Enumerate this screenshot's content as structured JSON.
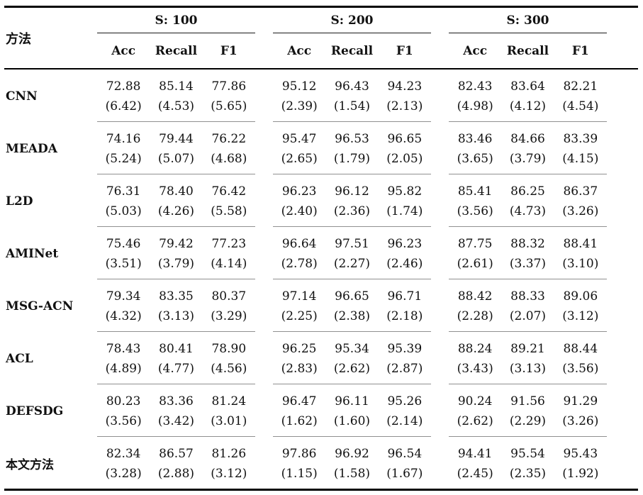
{
  "colors": {
    "text": "#111111",
    "thick_rule": "#000000",
    "row_separator": "#909090"
  },
  "table": {
    "method_header": "方法",
    "groups": [
      {
        "title": "S: 100",
        "columns": [
          "Acc",
          "Recall",
          "F1"
        ]
      },
      {
        "title": "S: 200",
        "columns": [
          "Acc",
          "Recall",
          "F1"
        ]
      },
      {
        "title": "S: 300",
        "columns": [
          "Acc",
          "Recall",
          "F1"
        ]
      }
    ],
    "rows": [
      {
        "method": "CNN",
        "cells": [
          {
            "value": "72.88",
            "std": "(6.42)"
          },
          {
            "value": "85.14",
            "std": "(4.53)"
          },
          {
            "value": "77.86",
            "std": "(5.65)"
          },
          {
            "value": "95.12",
            "std": "(2.39)"
          },
          {
            "value": "96.43",
            "std": "(1.54)"
          },
          {
            "value": "94.23",
            "std": "(2.13)"
          },
          {
            "value": "82.43",
            "std": "(4.98)"
          },
          {
            "value": "83.64",
            "std": "(4.12)"
          },
          {
            "value": "82.21",
            "std": "(4.54)"
          }
        ]
      },
      {
        "method": "MEADA",
        "cells": [
          {
            "value": "74.16",
            "std": "(5.24)"
          },
          {
            "value": "79.44",
            "std": "(5.07)"
          },
          {
            "value": "76.22",
            "std": "(4.68)"
          },
          {
            "value": "95.47",
            "std": "(2.65)"
          },
          {
            "value": "96.53",
            "std": "(1.79)"
          },
          {
            "value": "96.65",
            "std": "(2.05)"
          },
          {
            "value": "83.46",
            "std": "(3.65)"
          },
          {
            "value": "84.66",
            "std": "(3.79)"
          },
          {
            "value": "83.39",
            "std": "(4.15)"
          }
        ]
      },
      {
        "method": "L2D",
        "cells": [
          {
            "value": "76.31",
            "std": "(5.03)"
          },
          {
            "value": "78.40",
            "std": "(4.26)"
          },
          {
            "value": "76.42",
            "std": "(5.58)"
          },
          {
            "value": "96.23",
            "std": "(2.40)"
          },
          {
            "value": "96.12",
            "std": "(2.36)"
          },
          {
            "value": "95.82",
            "std": "(1.74)"
          },
          {
            "value": "85.41",
            "std": "(3.56)"
          },
          {
            "value": "86.25",
            "std": "(4.73)"
          },
          {
            "value": "86.37",
            "std": "(3.26)"
          }
        ]
      },
      {
        "method": "AMINet",
        "cells": [
          {
            "value": "75.46",
            "std": "(3.51)"
          },
          {
            "value": "79.42",
            "std": "(3.79)"
          },
          {
            "value": "77.23",
            "std": "(4.14)"
          },
          {
            "value": "96.64",
            "std": "(2.78)"
          },
          {
            "value": "97.51",
            "std": "(2.27)"
          },
          {
            "value": "96.23",
            "std": "(2.46)"
          },
          {
            "value": "87.75",
            "std": "(2.61)"
          },
          {
            "value": "88.32",
            "std": "(3.37)"
          },
          {
            "value": "88.41",
            "std": "(3.10)"
          }
        ]
      },
      {
        "method": "MSG-ACN",
        "cells": [
          {
            "value": "79.34",
            "std": "(4.32)"
          },
          {
            "value": "83.35",
            "std": "(3.13)"
          },
          {
            "value": "80.37",
            "std": "(3.29)"
          },
          {
            "value": "97.14",
            "std": "(2.25)"
          },
          {
            "value": "96.65",
            "std": "(2.38)"
          },
          {
            "value": "96.71",
            "std": "(2.18)"
          },
          {
            "value": "88.42",
            "std": "(2.28)"
          },
          {
            "value": "88.33",
            "std": "(2.07)"
          },
          {
            "value": "89.06",
            "std": "(3.12)"
          }
        ]
      },
      {
        "method": "ACL",
        "cells": [
          {
            "value": "78.43",
            "std": "(4.89)"
          },
          {
            "value": "80.41",
            "std": "(4.77)"
          },
          {
            "value": "78.90",
            "std": "(4.56)"
          },
          {
            "value": "96.25",
            "std": "(2.83)"
          },
          {
            "value": "95.34",
            "std": "(2.62)"
          },
          {
            "value": "95.39",
            "std": "(2.87)"
          },
          {
            "value": "88.24",
            "std": "(3.43)"
          },
          {
            "value": "89.21",
            "std": "(3.13)"
          },
          {
            "value": "88.44",
            "std": "(3.56)"
          }
        ]
      },
      {
        "method": "DEFSDG",
        "cells": [
          {
            "value": "80.23",
            "std": "(3.56)"
          },
          {
            "value": "83.36",
            "std": "(3.42)"
          },
          {
            "value": "81.24",
            "std": "(3.01)"
          },
          {
            "value": "96.47",
            "std": "(1.62)"
          },
          {
            "value": "96.11",
            "std": "(1.60)"
          },
          {
            "value": "95.26",
            "std": "(2.14)"
          },
          {
            "value": "90.24",
            "std": "(2.62)"
          },
          {
            "value": "91.56",
            "std": "(2.29)"
          },
          {
            "value": "91.29",
            "std": "(3.26)"
          }
        ]
      },
      {
        "method": "本文方法",
        "cells": [
          {
            "value": "82.34",
            "std": "(3.28)"
          },
          {
            "value": "86.57",
            "std": "(2.88)"
          },
          {
            "value": "81.26",
            "std": "(3.12)"
          },
          {
            "value": "97.86",
            "std": "(1.15)"
          },
          {
            "value": "96.92",
            "std": "(1.58)"
          },
          {
            "value": "96.54",
            "std": "(1.67)"
          },
          {
            "value": "94.41",
            "std": "(2.45)"
          },
          {
            "value": "95.54",
            "std": "(2.35)"
          },
          {
            "value": "95.43",
            "std": "(1.92)"
          }
        ]
      }
    ]
  }
}
